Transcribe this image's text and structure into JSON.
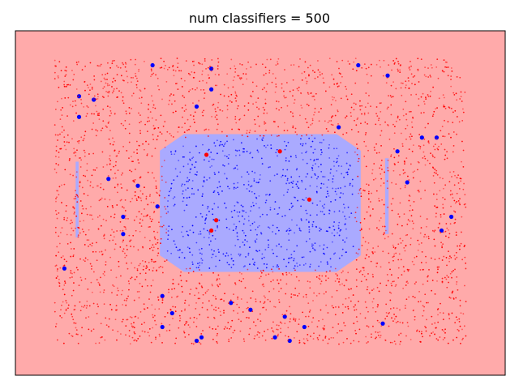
{
  "chart_data": {
    "type": "scatter",
    "title": "num classifiers = 500",
    "xlabel": "",
    "ylabel": "",
    "xlim": [
      0,
      1
    ],
    "ylim": [
      0,
      1
    ],
    "axes_ticks": false,
    "grid": false,
    "colors": {
      "background_region": "#ffaaaa",
      "decision_region": "#aaaaff",
      "class_red": "#ff0000",
      "class_blue": "#0000ff",
      "axes_frame": "#000000"
    },
    "series": [
      {
        "class_color": "#0000ff",
        "marker_size": "large",
        "points": [
          {
            "x": 0.28,
            "y": 0.9
          },
          {
            "x": 0.4,
            "y": 0.89
          },
          {
            "x": 0.7,
            "y": 0.9
          },
          {
            "x": 0.76,
            "y": 0.87
          },
          {
            "x": 0.4,
            "y": 0.83
          },
          {
            "x": 0.13,
            "y": 0.81
          },
          {
            "x": 0.16,
            "y": 0.8
          },
          {
            "x": 0.37,
            "y": 0.78
          },
          {
            "x": 0.13,
            "y": 0.75
          },
          {
            "x": 0.66,
            "y": 0.72
          },
          {
            "x": 0.83,
            "y": 0.69
          },
          {
            "x": 0.86,
            "y": 0.69
          },
          {
            "x": 0.78,
            "y": 0.65
          },
          {
            "x": 0.19,
            "y": 0.57
          },
          {
            "x": 0.25,
            "y": 0.55
          },
          {
            "x": 0.8,
            "y": 0.56
          },
          {
            "x": 0.29,
            "y": 0.49
          },
          {
            "x": 0.22,
            "y": 0.46
          },
          {
            "x": 0.89,
            "y": 0.46
          },
          {
            "x": 0.22,
            "y": 0.41
          },
          {
            "x": 0.87,
            "y": 0.42
          },
          {
            "x": 0.1,
            "y": 0.31
          },
          {
            "x": 0.3,
            "y": 0.23
          },
          {
            "x": 0.32,
            "y": 0.18
          },
          {
            "x": 0.44,
            "y": 0.21
          },
          {
            "x": 0.48,
            "y": 0.19
          },
          {
            "x": 0.3,
            "y": 0.14
          },
          {
            "x": 0.55,
            "y": 0.17
          },
          {
            "x": 0.75,
            "y": 0.15
          },
          {
            "x": 0.37,
            "y": 0.1
          },
          {
            "x": 0.38,
            "y": 0.11
          },
          {
            "x": 0.53,
            "y": 0.11
          },
          {
            "x": 0.56,
            "y": 0.1
          },
          {
            "x": 0.59,
            "y": 0.14
          }
        ]
      },
      {
        "class_color": "#0000ff",
        "marker_size": "small",
        "region": {
          "x_center": 0.5,
          "y_center": 0.5,
          "x_half_width": 0.19,
          "y_half_height": 0.19
        },
        "count": 700
      },
      {
        "class_color": "#ff0000",
        "marker_size": "small",
        "region": {
          "x_min": 0.08,
          "x_max": 0.92,
          "y_min": 0.09,
          "y_max": 0.92,
          "excluding_blue_region": true
        },
        "count": 2600
      },
      {
        "class_color": "#ff0000",
        "marker_size": "large",
        "points": [
          {
            "x": 0.54,
            "y": 0.65
          },
          {
            "x": 0.6,
            "y": 0.51
          },
          {
            "x": 0.41,
            "y": 0.45
          },
          {
            "x": 0.4,
            "y": 0.42
          },
          {
            "x": 0.39,
            "y": 0.64
          }
        ]
      }
    ],
    "decision_regions": [
      {
        "label_color": "#aaaaff",
        "x_range": [
          0.295,
          0.705
        ],
        "y_range": [
          0.3,
          0.7
        ],
        "shape": "rounded-octagon"
      },
      {
        "label_color": "#aaaaff",
        "x_range": [
          0.123,
          0.129
        ],
        "y_range": [
          0.4,
          0.62
        ],
        "shape": "vertical-strip"
      },
      {
        "label_color": "#aaaaff",
        "x_range": [
          0.755,
          0.762
        ],
        "y_range": [
          0.41,
          0.63
        ],
        "shape": "vertical-strip"
      }
    ]
  }
}
